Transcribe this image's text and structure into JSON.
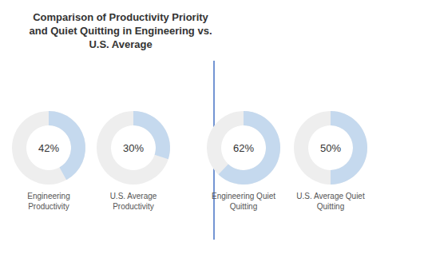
{
  "chart_data": {
    "type": "donut",
    "title": "Comparison of Productivity Priority\nand Quiet Quitting in Engineering vs.\nU.S. Average",
    "categories": [
      "Engineering\nProductivity",
      "U.S. Average\nProductivity",
      "Engineering Quiet\nQuitting",
      "U.S. Average Quiet\nQuitting"
    ],
    "values": [
      42,
      30,
      62,
      50
    ],
    "value_labels": [
      "42%",
      "30%",
      "62%",
      "50%"
    ],
    "data_labels": true,
    "color": "#c5d9ee",
    "ylim": [
      0,
      100
    ]
  }
}
